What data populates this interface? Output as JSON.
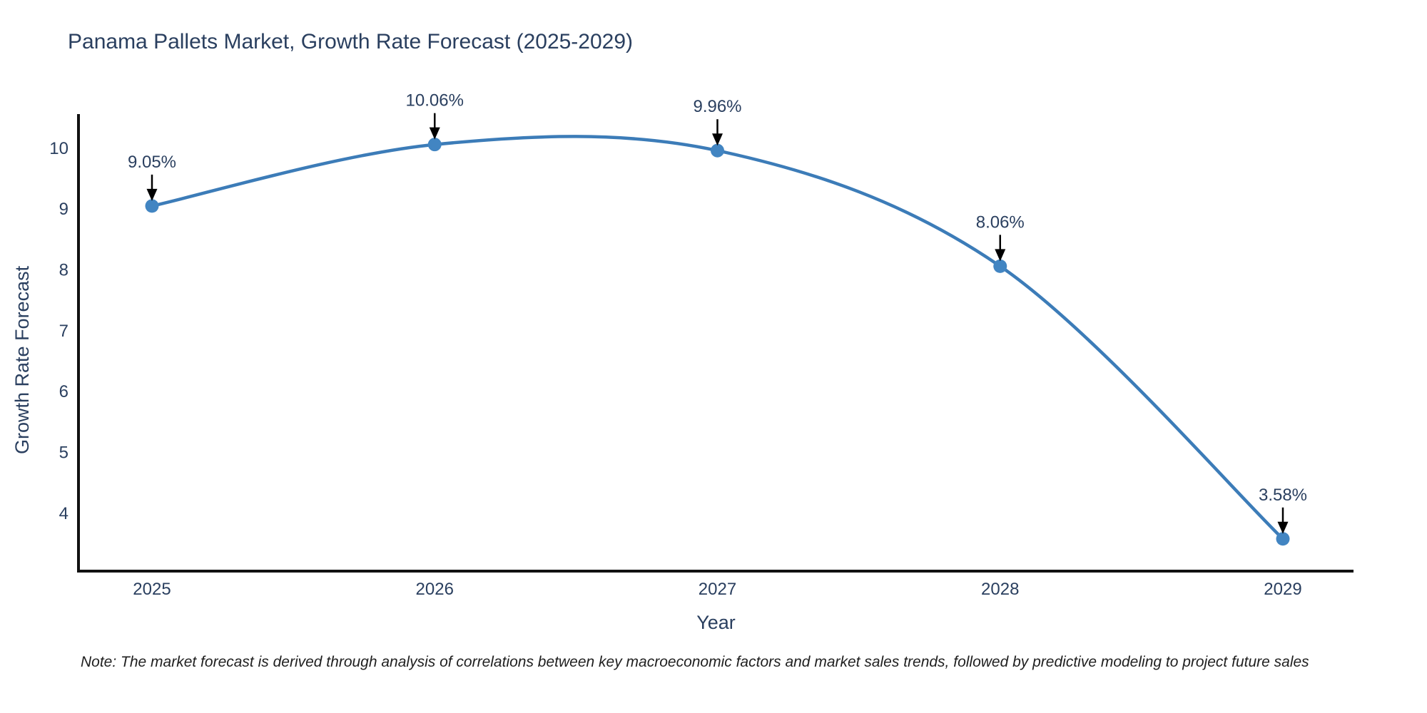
{
  "note": "Note: The market forecast is derived through analysis of correlations between key macroeconomic factors and market sales trends, followed by predictive modeling to project future sales",
  "chart_data": {
    "type": "line",
    "title": "Panama Pallets Market, Growth Rate Forecast (2025-2029)",
    "xlabel": "Year",
    "ylabel": "Growth Rate Forecast",
    "x": [
      "2025",
      "2026",
      "2027",
      "2028",
      "2029"
    ],
    "series": [
      {
        "name": "Growth Rate Forecast",
        "values": [
          9.05,
          10.06,
          9.96,
          8.06,
          3.58
        ]
      }
    ],
    "annotations": [
      "9.05%",
      "10.06%",
      "9.96%",
      "8.06%",
      "3.58%"
    ],
    "yticks": [
      4,
      5,
      6,
      7,
      8,
      9,
      10
    ],
    "ylim": [
      3.05,
      10.56
    ],
    "grid": false,
    "legend": "none",
    "line_shape": "spline",
    "colors": {
      "line": "#3c7cb8",
      "marker": "#4285c2",
      "text": "#2a3f5f",
      "axis": "#111111",
      "arrow": "#000000",
      "background": "#ffffff"
    }
  }
}
